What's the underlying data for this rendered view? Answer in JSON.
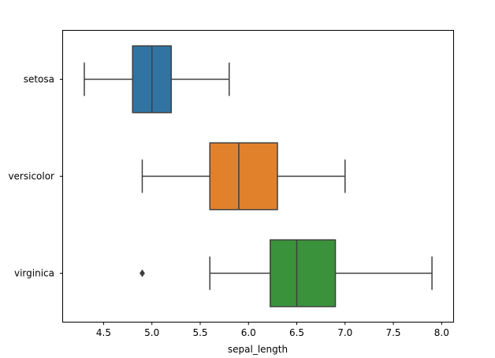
{
  "chart_data": {
    "type": "boxplot",
    "orientation": "horizontal",
    "title": "",
    "xlabel": "sepal_length",
    "ylabel": "",
    "xlim": [
      4.08,
      8.12
    ],
    "xticks": [
      4.5,
      5.0,
      5.5,
      6.0,
      6.5,
      7.0,
      7.5,
      8.0
    ],
    "xtick_labels": [
      "4.5",
      "5.0",
      "5.5",
      "6.0",
      "6.5",
      "7.0",
      "7.5",
      "8.0"
    ],
    "grid": false,
    "legend": "none",
    "categories": [
      "setosa",
      "versicolor",
      "virginica"
    ],
    "boxes": [
      {
        "category": "setosa",
        "whisker_low": 4.3,
        "q1": 4.8,
        "median": 5.0,
        "q3": 5.2,
        "whisker_high": 5.8,
        "outliers": [],
        "color": "#3274a1"
      },
      {
        "category": "versicolor",
        "whisker_low": 4.9,
        "q1": 5.6,
        "median": 5.9,
        "q3": 6.3,
        "whisker_high": 7.0,
        "outliers": [],
        "color": "#e1812c"
      },
      {
        "category": "virginica",
        "whisker_low": 5.6,
        "q1": 6.225,
        "median": 6.5,
        "q3": 6.9,
        "whisker_high": 7.9,
        "outliers": [
          4.9
        ],
        "color": "#3a923a"
      }
    ],
    "line_color": "#3f3f3f"
  }
}
